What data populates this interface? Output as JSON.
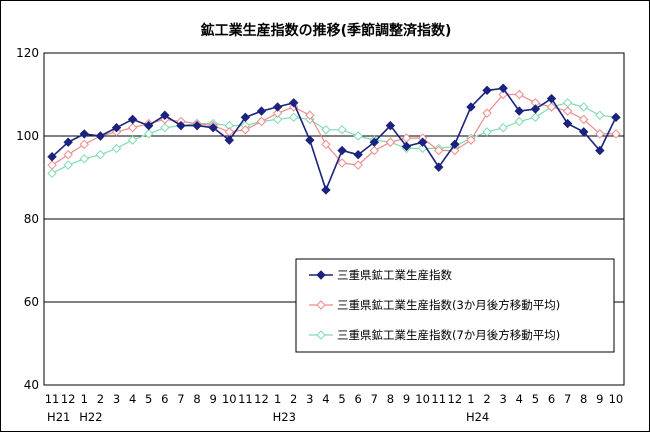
{
  "chart_data": {
    "type": "line",
    "title": "鉱工業生産指数の推移(季節調整済指数)",
    "xlabel": "",
    "ylabel": "",
    "ylim": [
      40,
      120
    ],
    "yticks": [
      40,
      60,
      80,
      100,
      120
    ],
    "grid": "horizontal",
    "legend_position": "center-right",
    "categories": [
      "11",
      "12",
      "1",
      "2",
      "3",
      "4",
      "5",
      "6",
      "7",
      "8",
      "9",
      "10",
      "11",
      "12",
      "1",
      "2",
      "3",
      "4",
      "5",
      "6",
      "7",
      "8",
      "9",
      "10",
      "11",
      "12",
      "1",
      "2",
      "3",
      "4",
      "5",
      "6",
      "7",
      "8",
      "9",
      "10"
    ],
    "year_labels": [
      {
        "index": 0,
        "label": "H21"
      },
      {
        "index": 2,
        "label": "H22"
      },
      {
        "index": 14,
        "label": "H23"
      },
      {
        "index": 26,
        "label": "H24"
      }
    ],
    "series": [
      {
        "name": "三重県鉱工業生産指数",
        "color": "#1a237e",
        "marker": "filled-diamond",
        "values": [
          95,
          98.5,
          100.5,
          100,
          102,
          104,
          102.5,
          105,
          102.5,
          102.5,
          102,
          99,
          104.5,
          106,
          107,
          108,
          99,
          87,
          96.5,
          95.5,
          98.5,
          102.5,
          97.5,
          98.5,
          92.5,
          98,
          107,
          111,
          111.5,
          106,
          106.5,
          109,
          103,
          101,
          96.5,
          104.5
        ]
      },
      {
        "name": "三重県鉱工業生産指数(3か月後方移動平均)",
        "color": "#ef8a8a",
        "marker": "open-diamond",
        "values": [
          93,
          95.5,
          98,
          100,
          101,
          102,
          103,
          104,
          103.5,
          103,
          102.5,
          101,
          101.5,
          103.5,
          105.5,
          107,
          105,
          98,
          93.5,
          93,
          96.5,
          98.5,
          99.5,
          99.5,
          96.5,
          96.5,
          99,
          105.5,
          110,
          110,
          108,
          107,
          106,
          104,
          100.5,
          100.5
        ]
      },
      {
        "name": "三重県鉱工業生産指数(7か月後方移動平均)",
        "color": "#7fdcb0",
        "marker": "open-diamond",
        "values": [
          91,
          93,
          94.5,
          95.5,
          97,
          99,
          100.5,
          102,
          102.5,
          103,
          103,
          102.5,
          102.5,
          103.5,
          104,
          104.5,
          104,
          101.5,
          101.5,
          100,
          99,
          98.5,
          97,
          97,
          97,
          97.5,
          99.5,
          101,
          102,
          103.5,
          104.5,
          107,
          108,
          107,
          105,
          104.5
        ]
      }
    ]
  }
}
